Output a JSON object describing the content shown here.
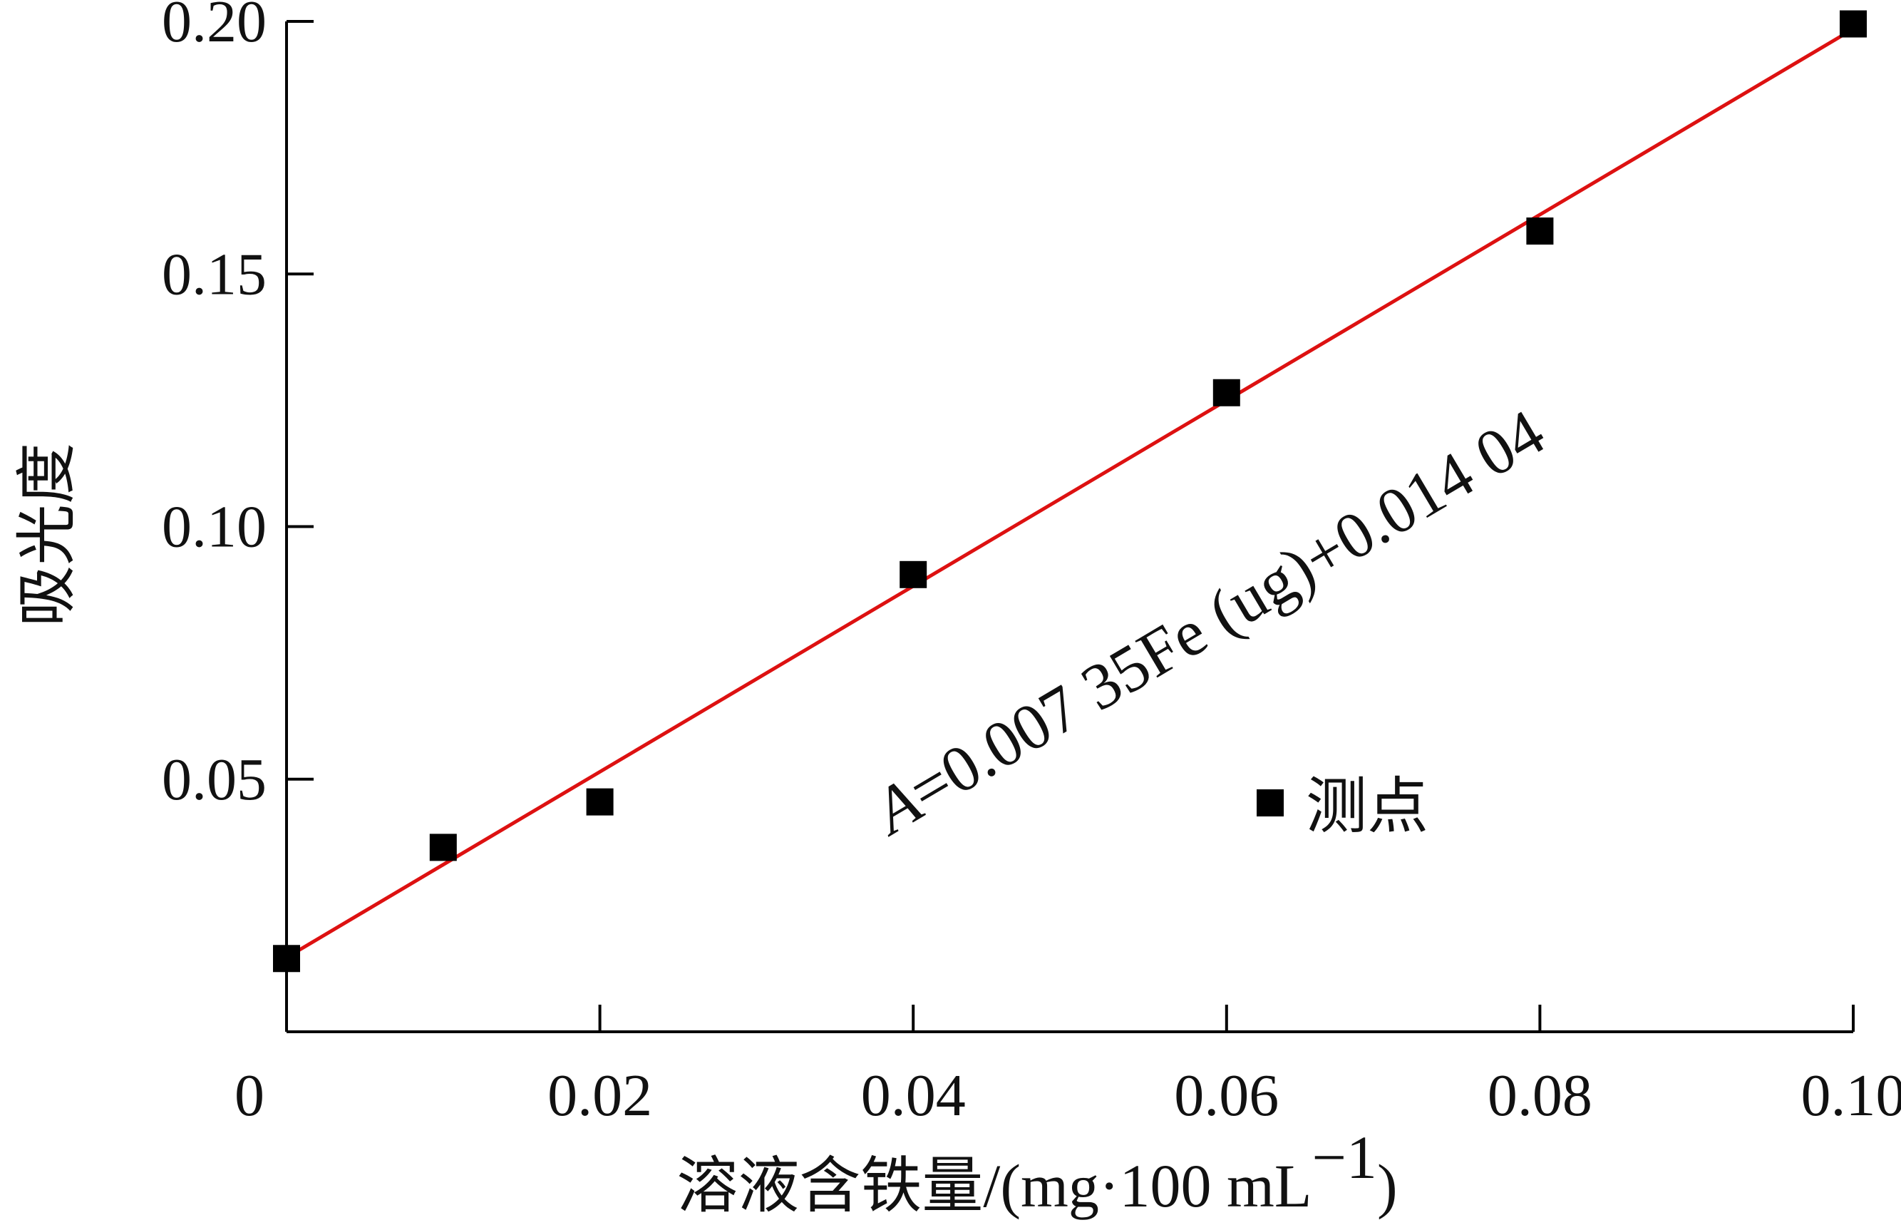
{
  "chart_data": {
    "type": "scatter",
    "xlabel_main": "溶液含铁量",
    "xlabel_unit": "/(mg·100 mL",
    "xlabel_sup": "−1",
    "xlabel_close": ")",
    "ylabel": "吸光度",
    "xlim": [
      0,
      0.1
    ],
    "ylim": [
      0,
      0.2
    ],
    "x_ticks": [
      {
        "value": 0,
        "label": "0"
      },
      {
        "value": 0.02,
        "label": "0.02"
      },
      {
        "value": 0.04,
        "label": "0.04"
      },
      {
        "value": 0.06,
        "label": "0.06"
      },
      {
        "value": 0.08,
        "label": "0.08"
      },
      {
        "value": 0.1,
        "label": "0.10"
      }
    ],
    "y_ticks": [
      {
        "value": 0.05,
        "label": "0.05"
      },
      {
        "value": 0.1,
        "label": "0.10"
      },
      {
        "value": 0.15,
        "label": "0.15"
      },
      {
        "value": 0.2,
        "label": "0.20"
      }
    ],
    "series": [
      {
        "name": "测点",
        "marker": "square",
        "color": "#000000",
        "points": [
          {
            "x": 0.0,
            "y": 0.0145
          },
          {
            "x": 0.01,
            "y": 0.0365
          },
          {
            "x": 0.02,
            "y": 0.0455
          },
          {
            "x": 0.04,
            "y": 0.0905
          },
          {
            "x": 0.06,
            "y": 0.1265
          },
          {
            "x": 0.08,
            "y": 0.1585
          },
          {
            "x": 0.1,
            "y": 0.1995
          }
        ]
      }
    ],
    "fit_line": {
      "color": "#dd1111",
      "x_start": 0.0,
      "y_start": 0.0147,
      "x_end": 0.1,
      "y_end": 0.1985
    },
    "annotation_main": "=0.007 35Fe (ug)+0.014 04",
    "annotation_var": "A",
    "legend_position": "center-right",
    "grid": false
  }
}
